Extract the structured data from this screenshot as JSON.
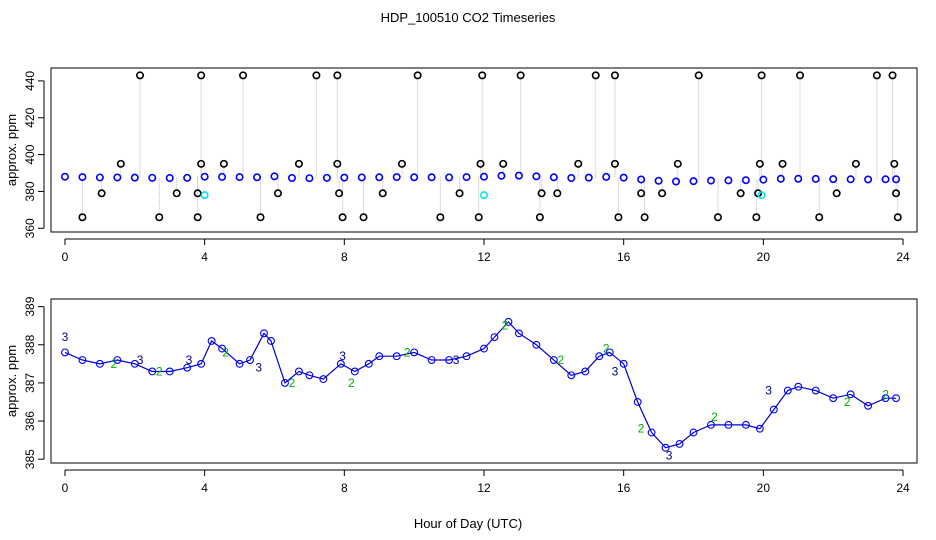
{
  "figure": {
    "title": "HDP_100510  CO2 Timeseries",
    "xlabel": "Hour of Day (UTC)"
  },
  "chart_data": [
    {
      "type": "scatter",
      "panel": "top",
      "ylabel": "approx. ppm",
      "xlim": [
        -0.4,
        24.4
      ],
      "ylim": [
        358,
        447
      ],
      "xticks": [
        0,
        4,
        8,
        12,
        16,
        20,
        24
      ],
      "yticks": [
        360,
        380,
        400,
        420,
        440
      ],
      "colors": {
        "main": "#0000ff",
        "outlier": "#000000",
        "flag": "#00e5ee",
        "connector": "#bbbbbb"
      },
      "series": [
        {
          "role": "baseline",
          "marker": "circle",
          "color": "#0000ff",
          "x": [
            0.0,
            0.5,
            1.0,
            1.5,
            2.0,
            2.5,
            3.0,
            3.5,
            4.0,
            4.5,
            5.0,
            5.5,
            6.0,
            6.5,
            7.0,
            7.5,
            8.0,
            8.5,
            9.0,
            9.5,
            10.0,
            10.5,
            11.0,
            11.5,
            12.0,
            12.5,
            13.0,
            13.5,
            14.0,
            14.5,
            15.0,
            15.5,
            16.0,
            16.5,
            17.0,
            17.5,
            18.0,
            18.5,
            19.0,
            19.5,
            20.0,
            20.5,
            21.0,
            21.5,
            22.0,
            22.5,
            23.0,
            23.5,
            23.8
          ],
          "y": [
            388,
            387.8,
            387.6,
            387.6,
            387.5,
            387.4,
            387.3,
            387.4,
            388,
            387.9,
            387.8,
            387.7,
            388.2,
            387.3,
            387.2,
            387.4,
            387.5,
            387.6,
            387.7,
            387.8,
            387.7,
            387.7,
            387.6,
            387.8,
            388,
            388.5,
            388.6,
            388.2,
            387.7,
            387.3,
            387.5,
            387.9,
            387.5,
            386.5,
            385.8,
            385.4,
            385.6,
            385.9,
            386,
            386.1,
            386.4,
            386.9,
            386.9,
            386.8,
            386.7,
            386.6,
            386.5,
            386.6,
            386.6
          ]
        },
        {
          "role": "calibration-high",
          "marker": "circle",
          "color": "#000000",
          "x": [
            2.15,
            3.9,
            5.1,
            7.2,
            7.8,
            10.1,
            11.95,
            13.05,
            15.2,
            15.75,
            18.15,
            19.95,
            21.05,
            23.25,
            23.7
          ],
          "y": [
            443,
            443,
            443,
            443,
            443,
            443,
            443,
            443,
            443,
            443,
            443,
            443,
            443,
            443,
            443
          ]
        },
        {
          "role": "calibration-mid",
          "marker": "circle",
          "color": "#000000",
          "x": [
            1.6,
            3.9,
            4.55,
            6.7,
            7.8,
            9.65,
            11.9,
            12.55,
            14.7,
            15.75,
            17.55,
            19.9,
            20.55,
            22.65,
            23.75
          ],
          "y": [
            395,
            395,
            395,
            395,
            395,
            395,
            395,
            395,
            395,
            395,
            395,
            395,
            395,
            395,
            395
          ]
        },
        {
          "role": "calibration-low",
          "marker": "circle",
          "color": "#000000",
          "x": [
            1.05,
            3.2,
            3.8,
            6.1,
            7.85,
            9.1,
            11.3,
            13.65,
            14.1,
            16.5,
            17.1,
            19.35,
            19.85,
            22.1,
            23.8
          ],
          "y": [
            379,
            379,
            379,
            379,
            379,
            379,
            379,
            379,
            379,
            379,
            379,
            379,
            379,
            379,
            379
          ]
        },
        {
          "role": "calibration-zero",
          "marker": "circle",
          "color": "#000000",
          "x": [
            0.5,
            2.7,
            3.8,
            5.6,
            7.95,
            8.55,
            10.75,
            11.85,
            13.6,
            15.85,
            16.6,
            18.7,
            19.8,
            21.6,
            23.85
          ],
          "y": [
            366,
            366,
            366,
            366,
            366,
            366,
            366,
            366,
            366,
            366,
            366,
            366,
            366,
            366,
            366
          ]
        },
        {
          "role": "flagged",
          "marker": "circle",
          "color": "#00e5ee",
          "x": [
            4.0,
            12.0,
            19.95
          ],
          "y": [
            378,
            378,
            378
          ]
        }
      ]
    },
    {
      "type": "scatter",
      "panel": "bottom",
      "ylabel": "approx. ppm",
      "xlim": [
        -0.4,
        24.4
      ],
      "ylim": [
        384.9,
        389.2
      ],
      "xticks": [
        0,
        4,
        8,
        12,
        16,
        20,
        24
      ],
      "yticks": [
        385,
        386,
        387,
        388,
        389
      ],
      "colors": {
        "circles": "#0000ff",
        "label3": "#00008b",
        "label2": "#00b000",
        "line": "#0000cd"
      },
      "series": [
        {
          "role": "trace",
          "marker": "circle",
          "color": "#0000ff",
          "x": [
            0.0,
            0.5,
            1.0,
            1.5,
            2.0,
            2.5,
            3.0,
            3.5,
            3.9,
            4.2,
            4.5,
            5.0,
            5.3,
            5.7,
            5.9,
            6.3,
            6.7,
            7.0,
            7.4,
            7.9,
            8.3,
            8.7,
            9.0,
            9.5,
            10.0,
            10.5,
            11.0,
            11.5,
            12.0,
            12.3,
            12.7,
            13.0,
            13.5,
            14.0,
            14.5,
            14.9,
            15.3,
            15.6,
            16.0,
            16.4,
            16.8,
            17.2,
            17.6,
            18.0,
            18.5,
            19.0,
            19.5,
            19.9,
            20.3,
            20.7,
            21.0,
            21.5,
            22.0,
            22.5,
            23.0,
            23.5,
            23.8
          ],
          "y": [
            387.8,
            387.6,
            387.5,
            387.6,
            387.5,
            387.3,
            387.3,
            387.4,
            387.5,
            388.1,
            387.9,
            387.5,
            387.6,
            388.3,
            388.1,
            387.0,
            387.3,
            387.2,
            387.1,
            387.5,
            387.3,
            387.5,
            387.7,
            387.7,
            387.8,
            387.6,
            387.6,
            387.7,
            387.9,
            388.2,
            388.6,
            388.3,
            388.0,
            387.6,
            387.2,
            387.3,
            387.7,
            387.8,
            387.5,
            386.5,
            385.7,
            385.3,
            385.4,
            385.7,
            385.9,
            385.9,
            385.9,
            385.8,
            386.3,
            386.8,
            386.9,
            386.8,
            386.6,
            386.7,
            386.4,
            386.6,
            386.6
          ]
        },
        {
          "role": "label-3",
          "marker": "3",
          "color": "#00008b",
          "x": [
            0.0,
            2.15,
            3.55,
            5.55,
            7.95,
            11.2,
            15.75,
            17.3,
            20.15
          ],
          "y": [
            388.2,
            387.6,
            387.6,
            387.4,
            387.7,
            387.6,
            387.3,
            385.1,
            386.8
          ]
        },
        {
          "role": "label-2",
          "marker": "2",
          "color": "#00b000",
          "x": [
            1.4,
            2.7,
            4.6,
            6.5,
            8.2,
            9.8,
            12.6,
            14.2,
            15.5,
            16.5,
            18.6,
            22.4,
            23.5
          ],
          "y": [
            387.5,
            387.3,
            387.8,
            387.0,
            387.0,
            387.8,
            388.5,
            387.6,
            387.9,
            385.8,
            386.1,
            386.5,
            386.7
          ]
        }
      ]
    }
  ]
}
